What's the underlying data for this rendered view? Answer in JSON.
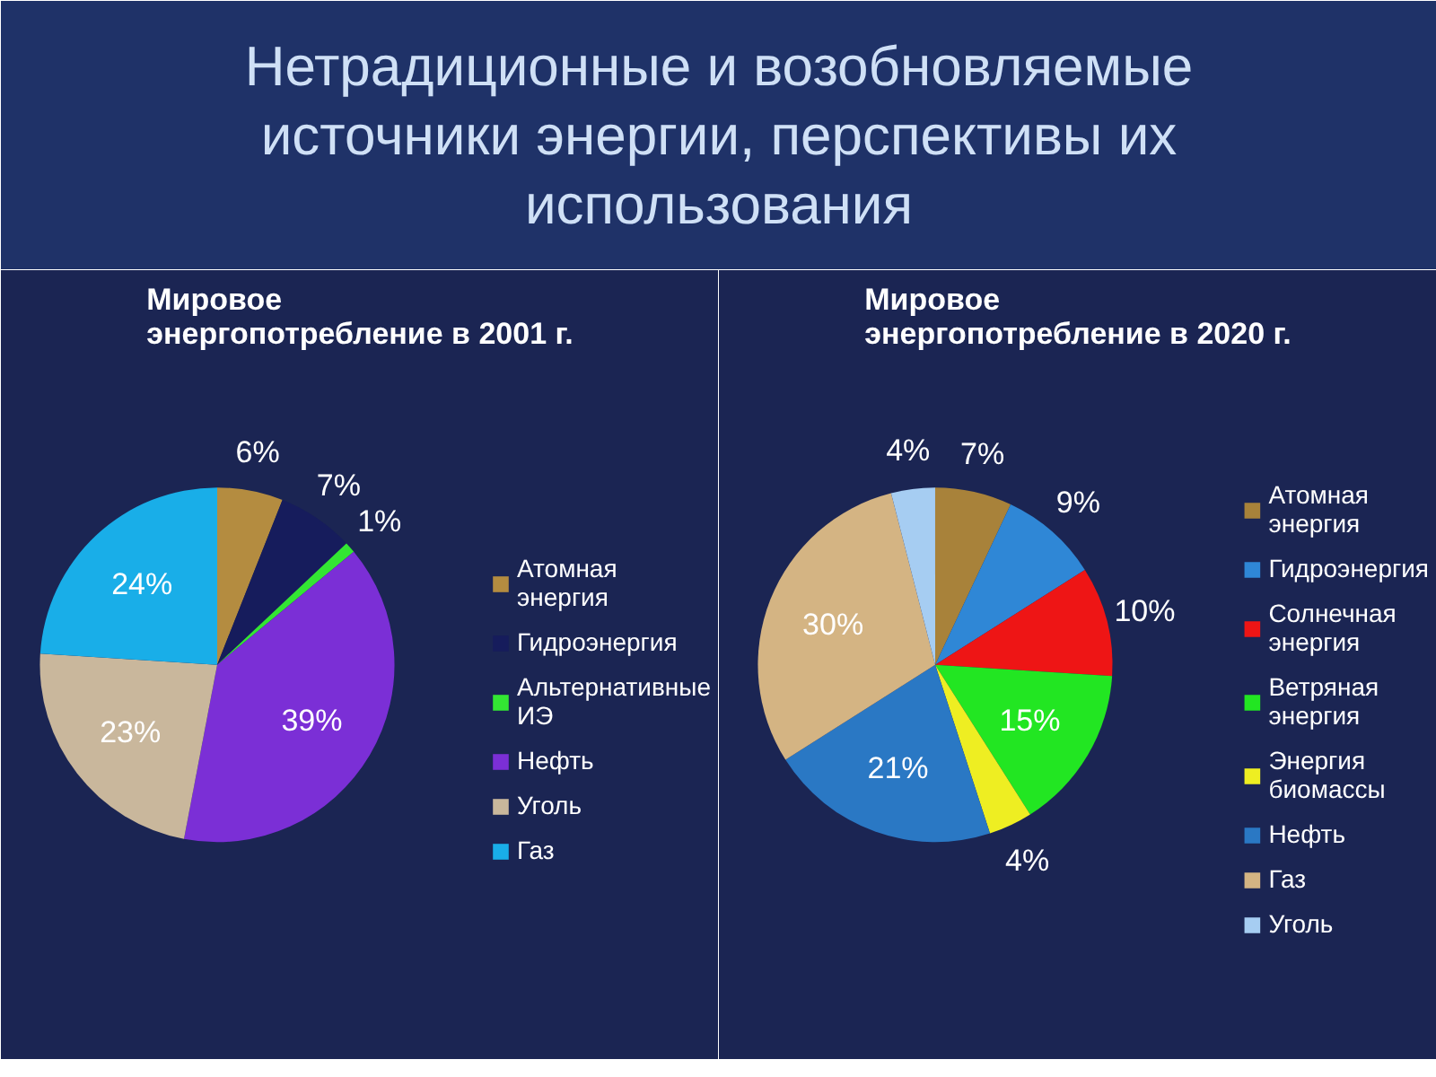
{
  "chart_data": [
    {
      "type": "pie",
      "title": "Нетрадиционные и возобновляемые источники энергии, перспективы их использования",
      "subtitle": "Мировое энергопотребление в 2001 г.",
      "categories": [
        "Атомная энергия",
        "Гидроэнергия",
        "Альтернативные ИЭ",
        "Нефть",
        "Уголь",
        "Газ"
      ],
      "values": [
        6,
        7,
        1,
        39,
        23,
        24
      ],
      "colors": [
        "#b48c40",
        "#161c5c",
        "#33e633",
        "#7b2fd6",
        "#c9b79c",
        "#19aee8"
      ],
      "value_labels": [
        "6%",
        "7%",
        "1%",
        "39%",
        "23%",
        "24%"
      ],
      "legend": "right"
    },
    {
      "type": "pie",
      "subtitle": "Мировое энергопотребление в 2020 г.",
      "categories": [
        "Атомная энергия",
        "Гидроэнергия",
        "Солнечная энергия",
        "Ветряная энергия",
        "Энергия биомассы",
        "Нефть",
        "Газ",
        "Уголь"
      ],
      "values": [
        7,
        9,
        10,
        15,
        4,
        21,
        30,
        4
      ],
      "colors": [
        "#a8823a",
        "#2f87d6",
        "#ee1515",
        "#22e622",
        "#eeee22",
        "#2a78c4",
        "#d4b483",
        "#a6cdf2"
      ],
      "value_labels": [
        "7%",
        "9%",
        "10%",
        "15%",
        "4%",
        "21%",
        "30%",
        "4%"
      ],
      "legend": "right"
    }
  ]
}
